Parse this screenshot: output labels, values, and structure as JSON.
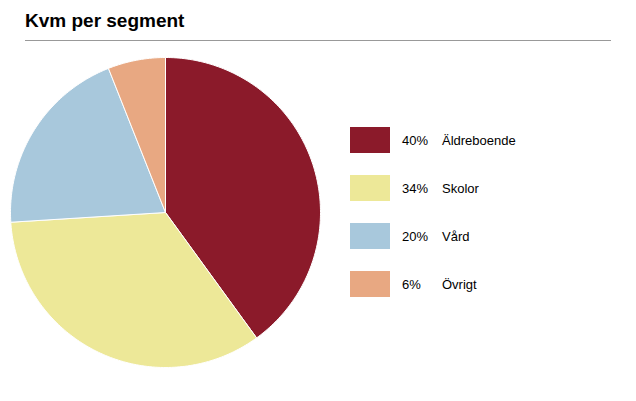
{
  "chart_data": {
    "type": "pie",
    "title": "Kvm per segment",
    "categories": [
      "Äldreboende",
      "Skolor",
      "Vård",
      "Övrigt"
    ],
    "values": [
      40,
      34,
      20,
      6
    ],
    "value_labels": [
      "40%",
      "34%",
      "20%",
      "6%"
    ],
    "colors": [
      "#8B1A2A",
      "#EDE898",
      "#A8C8DC",
      "#E8A882"
    ],
    "legend": "right"
  }
}
